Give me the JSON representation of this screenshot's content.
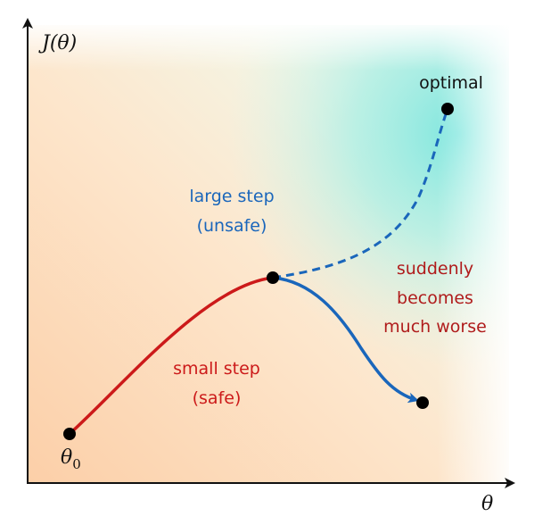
{
  "axes": {
    "y_label": "J(θ)",
    "x_label": "θ"
  },
  "points": {
    "start_label": "θ",
    "start_subscript": "0",
    "optimal_label": "optimal"
  },
  "annotations": {
    "large_step_line1": "large step",
    "large_step_line2": "(unsafe)",
    "small_step_line1": "small step",
    "small_step_line2": "(safe)",
    "worse_line1": "suddenly",
    "worse_line2": "becomes",
    "worse_line3": "much worse"
  },
  "colors": {
    "safe": "#cc1a1a",
    "unsafe": "#1a66bb",
    "worse_text": "#b01c1c",
    "axis": "#111111",
    "background_warm": "#fcd4b0",
    "background_cool": "#8ee8e0"
  }
}
